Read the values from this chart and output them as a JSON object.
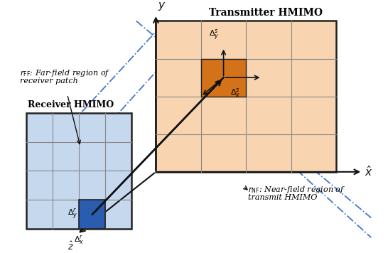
{
  "bg_color": "#ffffff",
  "tx_fill_color": "#f8d5b0",
  "tx_border_color": "#222222",
  "tx_grid_color": "#888888",
  "tx_patch_color": "#d4721a",
  "rx_fill_color": "#c5d8ee",
  "rx_border_color": "#222222",
  "rx_grid_color": "#888888",
  "rx_patch_color": "#2a5db0",
  "dashdot_color": "#4477cc",
  "arrow_color": "#111111",
  "axis_color": "#111111",
  "tx_label": "Transmitter HMIMO",
  "rx_label": "Receiver HMIMO",
  "rff_label_1": "$r_{\\mathrm{FF}}$: Far-field region of",
  "rff_label_2": "receiver patch",
  "rnf_label_1": "$r_{\\mathrm{NF}}$: Near-field region of",
  "rnf_label_2": "transmit HMIMO",
  "delta_s_y": "$\\Delta^s_y$",
  "delta_s_x": "$\\Delta^s_x$",
  "delta_r_y": "$\\Delta^r_y$",
  "delta_r_x": "$\\Delta^r_x$",
  "y_label": "$y$",
  "x_label": "$\\hat{x}$",
  "z_label": "$\\hat{z}$"
}
